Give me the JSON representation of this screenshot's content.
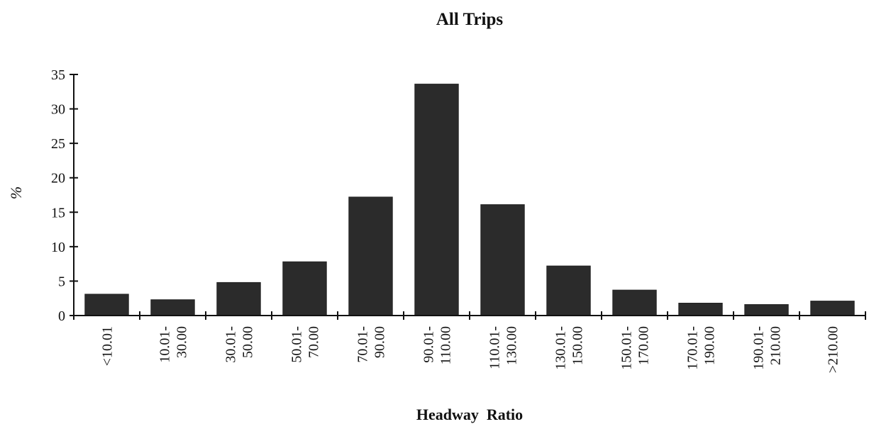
{
  "chart_data": {
    "type": "bar",
    "title": "All Trips",
    "xlabel": "Headway  Ratio",
    "ylabel": "%",
    "ylim": [
      0,
      35
    ],
    "yticks": [
      0,
      5,
      10,
      15,
      20,
      25,
      30,
      35
    ],
    "grid": false,
    "bar_color": "#2b2b2b",
    "categories": [
      [
        "<10.01"
      ],
      [
        "10.01-",
        "30.00"
      ],
      [
        "30.01-",
        "50.00"
      ],
      [
        "50.01-",
        "70.00"
      ],
      [
        "70.01-",
        "90.00"
      ],
      [
        "90.01-",
        "110.00"
      ],
      [
        "110.01-",
        "130.00"
      ],
      [
        "130.01-",
        "150.00"
      ],
      [
        "150.01-",
        "170.00"
      ],
      [
        "170.01-",
        "190.00"
      ],
      [
        "190.01-",
        "210.00"
      ],
      [
        ">210.00"
      ]
    ],
    "values": [
      3.1,
      2.3,
      4.8,
      7.8,
      17.2,
      33.6,
      16.1,
      7.2,
      3.7,
      1.8,
      1.6,
      2.1
    ]
  }
}
